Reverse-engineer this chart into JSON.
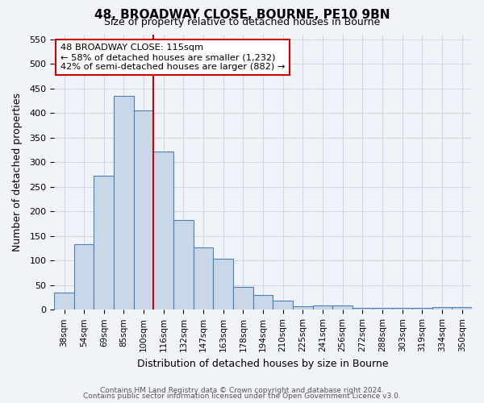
{
  "title": "48, BROADWAY CLOSE, BOURNE, PE10 9BN",
  "subtitle": "Size of property relative to detached houses in Bourne",
  "xlabel": "Distribution of detached houses by size in Bourne",
  "ylabel": "Number of detached properties",
  "bar_labels": [
    "38sqm",
    "54sqm",
    "69sqm",
    "85sqm",
    "100sqm",
    "116sqm",
    "132sqm",
    "147sqm",
    "163sqm",
    "178sqm",
    "194sqm",
    "210sqm",
    "225sqm",
    "241sqm",
    "256sqm",
    "272sqm",
    "288sqm",
    "303sqm",
    "319sqm",
    "334sqm",
    "350sqm"
  ],
  "bar_values": [
    35,
    133,
    272,
    435,
    405,
    322,
    183,
    126,
    103,
    46,
    30,
    18,
    7,
    8,
    9,
    4,
    4,
    3,
    4,
    5,
    5
  ],
  "ylim": [
    0,
    560
  ],
  "bar_color": "#c8d8e8",
  "bar_edge_color": "#4a7eb5",
  "marker_line_color": "#cc0000",
  "grid_color": "#d0d8e8",
  "bg_color": "#f0f4f8",
  "annotation_text": "48 BROADWAY CLOSE: 115sqm\n← 58% of detached houses are smaller (1,232)\n42% of semi-detached houses are larger (882) →",
  "annotation_box_color": "#ffffff",
  "annotation_box_edge": "#cc0000",
  "footer1": "Contains HM Land Registry data © Crown copyright and database right 2024.",
  "footer2": "Contains public sector information licensed under the Open Government Licence v3.0.",
  "yticks": [
    0,
    50,
    100,
    150,
    200,
    250,
    300,
    350,
    400,
    450,
    500,
    550
  ]
}
